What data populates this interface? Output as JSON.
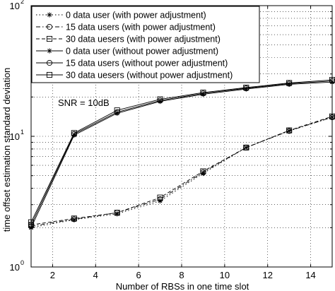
{
  "chart_data": {
    "type": "line",
    "title": "",
    "xlabel": "Number of RBSs in one time slot",
    "ylabel": "time offset estimation standard deviation",
    "xlim": [
      1,
      15
    ],
    "ylim": [
      1,
      100
    ],
    "yscale": "log",
    "grid": true,
    "legend_position": "top-left",
    "x_ticks": [
      2,
      4,
      6,
      8,
      10,
      12,
      14
    ],
    "y_ticks": [
      {
        "base": "10",
        "exp": "0",
        "value": 1
      },
      {
        "base": "10",
        "exp": "1",
        "value": 10
      },
      {
        "base": "10",
        "exp": "2",
        "value": 100
      }
    ],
    "annotation": "SNR = 10dB",
    "series": [
      {
        "name": "0 data user (with power adjustment)",
        "marker": "star",
        "dash": "dot",
        "x": [
          1,
          3,
          5,
          7,
          9,
          11,
          13,
          15
        ],
        "y": [
          2.0,
          2.3,
          2.55,
          3.2,
          5.2,
          8.2,
          11.0,
          14.0
        ]
      },
      {
        "name": "15 data users (with power adjustment)",
        "marker": "circle",
        "dash": "dashdot",
        "x": [
          1,
          3,
          5,
          7,
          9,
          11,
          13,
          15
        ],
        "y": [
          2.05,
          2.32,
          2.6,
          3.3,
          5.3,
          8.2,
          11.0,
          14.0
        ]
      },
      {
        "name": "30 data uesers (with power adjustment)",
        "marker": "square",
        "dash": "dash",
        "x": [
          1,
          3,
          5,
          7,
          9,
          11,
          13,
          15
        ],
        "y": [
          2.1,
          2.35,
          2.6,
          3.4,
          5.4,
          8.2,
          11.1,
          14.2
        ]
      },
      {
        "name": "0 data user (without power adjustment)",
        "marker": "star",
        "dash": "solid",
        "x": [
          1,
          3,
          5,
          7,
          9,
          11,
          13,
          15
        ],
        "y": [
          2.0,
          10.2,
          15.0,
          18.5,
          21.0,
          23.0,
          25.0,
          26.0
        ]
      },
      {
        "name": "15 data users (without power adjustment)",
        "marker": "circle",
        "dash": "solid",
        "x": [
          1,
          3,
          5,
          7,
          9,
          11,
          13,
          15
        ],
        "y": [
          2.1,
          10.4,
          15.3,
          18.8,
          21.3,
          23.3,
          25.3,
          26.5
        ]
      },
      {
        "name": "30 data uesers (without power adjustment)",
        "marker": "square",
        "dash": "solid",
        "x": [
          1,
          3,
          5,
          7,
          9,
          11,
          13,
          15
        ],
        "y": [
          2.2,
          10.6,
          15.8,
          19.2,
          21.6,
          23.6,
          25.6,
          27.0
        ]
      }
    ]
  }
}
